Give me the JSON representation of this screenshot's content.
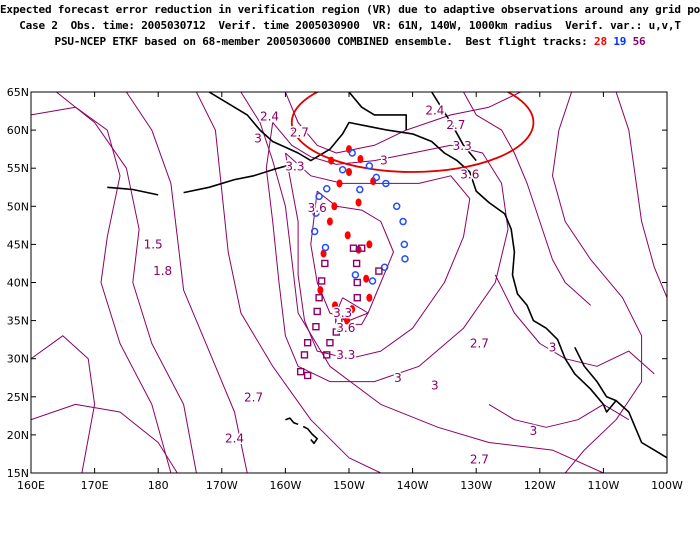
{
  "header": {
    "line1": "Expected forecast error reduction in verification region (VR) due to adaptive observations around any grid point.",
    "line2": "Case 2  Obs. time: 2005030712  Verif. time 2005030900  VR: 61N, 140W, 1000km radius  Verif. var.: u,v,T",
    "line3_prefix": "PSU-NCEP ETKF based on 68-member 2005030600 COMBINED ensemble.  Best flight tracks: ",
    "track_red": "28",
    "track_blue": "19",
    "track_purple": "56"
  },
  "map": {
    "lat_labels": [
      "65N",
      "60N",
      "55N",
      "50N",
      "45N",
      "40N",
      "35N",
      "30N",
      "25N",
      "20N",
      "15N"
    ],
    "lon_labels": [
      "160E",
      "170E",
      "180",
      "170W",
      "160W",
      "150W",
      "140W",
      "130W",
      "120W",
      "110W",
      "100W"
    ],
    "contour_color": "#8b0066",
    "coast_color": "#000000",
    "vr_circle_color": "#e00000",
    "contour_labels": [
      {
        "text": "2.4",
        "lon": -162.5,
        "lat": 61.8
      },
      {
        "text": "2.7",
        "lon": -157.8,
        "lat": 59.7
      },
      {
        "text": "3",
        "lon": -164.3,
        "lat": 58.9
      },
      {
        "text": "2.4",
        "lon": -136.5,
        "lat": 62.6
      },
      {
        "text": "2.7",
        "lon": -133.2,
        "lat": 60.7
      },
      {
        "text": "3.3",
        "lon": -132.2,
        "lat": 57.9
      },
      {
        "text": "3",
        "lon": -144.5,
        "lat": 56.0
      },
      {
        "text": "3.3",
        "lon": -158.5,
        "lat": 55.2
      },
      {
        "text": "3.6",
        "lon": -131.0,
        "lat": 54.2
      },
      {
        "text": "3.6",
        "lon": -155.0,
        "lat": 49.8
      },
      {
        "text": "1.5",
        "lon": -180.8,
        "lat": 45.0
      },
      {
        "text": "1.8",
        "lon": -179.3,
        "lat": 41.5
      },
      {
        "text": "3.3",
        "lon": -151.0,
        "lat": 36.0
      },
      {
        "text": "3.6",
        "lon": -150.5,
        "lat": 34.0
      },
      {
        "text": "3.3",
        "lon": -150.5,
        "lat": 30.5
      },
      {
        "text": "3",
        "lon": -142.3,
        "lat": 27.5
      },
      {
        "text": "3",
        "lon": -136.5,
        "lat": 26.5
      },
      {
        "text": "2.7",
        "lon": -165.0,
        "lat": 24.9
      },
      {
        "text": "2.4",
        "lon": -168.0,
        "lat": 19.5
      },
      {
        "text": "2.7",
        "lon": -129.5,
        "lat": 32.0
      },
      {
        "text": "3",
        "lon": -118.0,
        "lat": 31.5
      },
      {
        "text": "3",
        "lon": -121.0,
        "lat": 20.5
      },
      {
        "text": "2.7",
        "lon": -129.5,
        "lat": 16.8
      }
    ],
    "track_red_points": [
      [
        -150,
        57.5
      ],
      [
        -148.2,
        56.2
      ],
      [
        -152.8,
        56.0
      ],
      [
        -150,
        54.5
      ],
      [
        -151.5,
        53.0
      ],
      [
        -146.2,
        53.3
      ],
      [
        -152.3,
        50.0
      ],
      [
        -148.5,
        50.5
      ],
      [
        -153,
        48
      ],
      [
        -150.2,
        46.2
      ],
      [
        -148.5,
        44.3
      ],
      [
        -146.8,
        45
      ],
      [
        -154,
        43.8
      ],
      [
        -147.3,
        40.5
      ],
      [
        -146.8,
        38.0
      ],
      [
        -154.5,
        39
      ],
      [
        -149.5,
        36.5
      ],
      [
        -152.2,
        37
      ],
      [
        -150.3,
        35
      ]
    ],
    "track_blue_points": [
      [
        -149.5,
        57
      ],
      [
        -146.8,
        55.3
      ],
      [
        -151,
        54.8
      ],
      [
        -145.7,
        53.8
      ],
      [
        -144.2,
        53
      ],
      [
        -148.3,
        52.2
      ],
      [
        -153.5,
        52.3
      ],
      [
        -154.7,
        51.3
      ],
      [
        -142.5,
        50
      ],
      [
        -155.2,
        49.1
      ],
      [
        -141.5,
        48
      ],
      [
        -155.4,
        46.7
      ],
      [
        -141.3,
        45
      ],
      [
        -153.7,
        44.6
      ],
      [
        -141.2,
        43.1
      ],
      [
        -149,
        41
      ],
      [
        -144.4,
        42
      ],
      [
        -146.3,
        40.2
      ]
    ],
    "track_purple_points": [
      [
        -149.3,
        44.5
      ],
      [
        -148,
        44.5
      ],
      [
        -153.8,
        42.5
      ],
      [
        -148.8,
        42.5
      ],
      [
        -145.3,
        41.5
      ],
      [
        -154.3,
        40.2
      ],
      [
        -148.7,
        40
      ],
      [
        -154.7,
        38
      ],
      [
        -148.7,
        38
      ],
      [
        -155,
        36.2
      ],
      [
        -151.6,
        35.1
      ],
      [
        -155.2,
        34.2
      ],
      [
        -152,
        33.5
      ],
      [
        -156.5,
        32.1
      ],
      [
        -153,
        32.1
      ],
      [
        -157,
        30.5
      ],
      [
        -153.5,
        30.5
      ],
      [
        -157.6,
        28.3
      ],
      [
        -156.5,
        27.8
      ]
    ]
  }
}
